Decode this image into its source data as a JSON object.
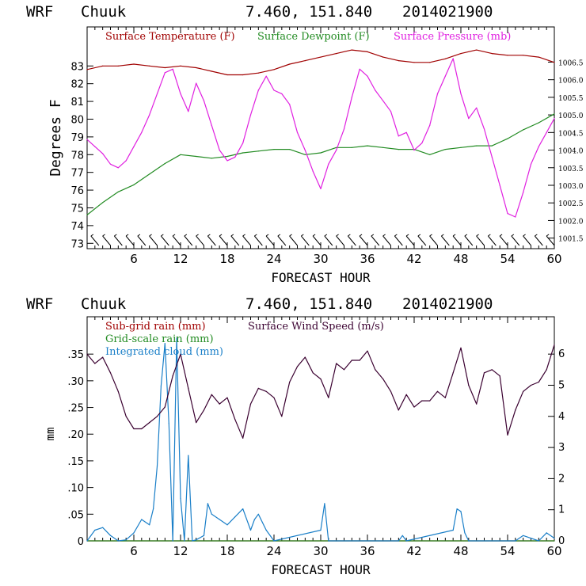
{
  "chart_data": [
    {
      "type": "line",
      "header": {
        "model": "WRF",
        "station": "Chuuk",
        "coords": "7.460, 151.840",
        "init": "2014021900"
      },
      "xlabel": "FORECAST HOUR",
      "ylabel": "Degrees F",
      "xlim": [
        0,
        60
      ],
      "ylim": [
        72.7,
        85.2
      ],
      "x_ticks": [
        6,
        12,
        18,
        24,
        30,
        36,
        42,
        48,
        54,
        60
      ],
      "y_ticks": [
        73,
        74,
        75,
        76,
        77,
        78,
        79,
        80,
        81,
        82,
        83
      ],
      "y2_label": "Surface Pressure (mb)",
      "y2lim": [
        1001.2,
        1007.5
      ],
      "y2_ticks": [
        "1001.5",
        "1002.0",
        "1002.5",
        "1003.0",
        "1003.5",
        "1004.0",
        "1004.5",
        "1005.0",
        "1005.5",
        "1006.0",
        "1006.5"
      ],
      "series": [
        {
          "name": "Surface Temperature (F)",
          "color": "#a00000",
          "axis": "left",
          "x": [
            0,
            2,
            4,
            6,
            8,
            10,
            12,
            14,
            16,
            18,
            20,
            22,
            24,
            26,
            28,
            30,
            32,
            34,
            36,
            38,
            40,
            42,
            44,
            46,
            48,
            50,
            52,
            54,
            56,
            58,
            60
          ],
          "values": [
            82.8,
            83.0,
            83.0,
            83.1,
            83.0,
            82.9,
            83.0,
            82.9,
            82.7,
            82.5,
            82.5,
            82.6,
            82.8,
            83.1,
            83.3,
            83.5,
            83.7,
            83.9,
            83.8,
            83.5,
            83.3,
            83.2,
            83.2,
            83.4,
            83.7,
            83.9,
            83.7,
            83.6,
            83.6,
            83.5,
            83.2
          ]
        },
        {
          "name": "Surface Dewpoint (F)",
          "color": "#228b22",
          "axis": "left",
          "x": [
            0,
            2,
            4,
            6,
            8,
            10,
            12,
            14,
            16,
            18,
            20,
            22,
            24,
            26,
            28,
            30,
            32,
            34,
            36,
            38,
            40,
            42,
            44,
            46,
            48,
            50,
            52,
            54,
            56,
            58,
            60
          ],
          "values": [
            74.6,
            75.3,
            75.9,
            76.3,
            76.9,
            77.5,
            78.0,
            77.9,
            77.8,
            77.9,
            78.1,
            78.2,
            78.3,
            78.3,
            78.0,
            78.1,
            78.4,
            78.4,
            78.5,
            78.4,
            78.3,
            78.3,
            78.0,
            78.3,
            78.4,
            78.5,
            78.5,
            78.9,
            79.4,
            79.8,
            80.3
          ]
        },
        {
          "name": "Surface Pressure (mb)",
          "color": "#e020e0",
          "axis": "right",
          "x": [
            0,
            1,
            2,
            3,
            4,
            5,
            6,
            7,
            8,
            9,
            10,
            11,
            12,
            13,
            14,
            15,
            16,
            17,
            18,
            19,
            20,
            21,
            22,
            23,
            24,
            25,
            26,
            27,
            28,
            29,
            30,
            31,
            32,
            33,
            34,
            35,
            36,
            37,
            38,
            39,
            40,
            41,
            42,
            43,
            44,
            45,
            46,
            47,
            48,
            49,
            50,
            51,
            52,
            53,
            54,
            55,
            56,
            57,
            58,
            59,
            60
          ],
          "values": [
            1004.3,
            1004.1,
            1003.9,
            1003.6,
            1003.5,
            1003.7,
            1004.1,
            1004.5,
            1005.0,
            1005.6,
            1006.2,
            1006.3,
            1005.6,
            1005.1,
            1005.9,
            1005.4,
            1004.7,
            1004.0,
            1003.7,
            1003.8,
            1004.2,
            1005.0,
            1005.7,
            1006.1,
            1005.7,
            1005.6,
            1005.3,
            1004.5,
            1004.0,
            1003.4,
            1002.9,
            1003.6,
            1004.0,
            1004.6,
            1005.5,
            1006.3,
            1006.1,
            1005.7,
            1005.4,
            1005.1,
            1004.4,
            1004.5,
            1004.0,
            1004.2,
            1004.7,
            1005.6,
            1006.1,
            1006.6,
            1005.6,
            1004.9,
            1005.2,
            1004.6,
            1003.8,
            1003.0,
            1002.2,
            1002.1,
            1002.8,
            1003.6,
            1004.1,
            1004.5,
            1004.9
          ]
        }
      ],
      "wind_barbs": "wind barbs along bottom of panel every hour"
    },
    {
      "type": "line",
      "header": {
        "model": "WRF",
        "station": "Chuuk",
        "coords": "7.460, 151.840",
        "init": "2014021900"
      },
      "xlabel": "FORECAST HOUR",
      "ylabel": "mm",
      "xlim": [
        0,
        60
      ],
      "ylim": [
        0,
        0.42
      ],
      "x_ticks": [
        6,
        12,
        18,
        24,
        30,
        36,
        42,
        48,
        54,
        60
      ],
      "y_ticks": [
        "0",
        ".05",
        ".10",
        ".15",
        ".20",
        ".25",
        ".30",
        ".35"
      ],
      "y2_label": "Surface Wind Speed (m/s)",
      "y2lim": [
        0,
        7.2
      ],
      "y2_ticks": [
        "0",
        "1",
        "2",
        "3",
        "4",
        "5",
        "6"
      ],
      "series": [
        {
          "name": "Sub-grid rain (mm)",
          "color": "#a00000",
          "axis": "left",
          "x": [
            0,
            60
          ],
          "values": [
            0.0,
            0.0
          ]
        },
        {
          "name": "Grid-scale rain (mm)",
          "color": "#228b22",
          "axis": "left",
          "x": [
            0,
            60
          ],
          "values": [
            0.0,
            0.0
          ]
        },
        {
          "name": "Integrated cloud (mm)",
          "color": "#1a7fc8",
          "axis": "left",
          "x": [
            0,
            1,
            2,
            3,
            4,
            5,
            6,
            7,
            8,
            8.5,
            9,
            9.5,
            10,
            10.5,
            11,
            11.5,
            12,
            12.5,
            13,
            13.5,
            14,
            15,
            15.5,
            16,
            17,
            18,
            19,
            20,
            21,
            21.5,
            22,
            23,
            24,
            30,
            30.5,
            31,
            32,
            40,
            40.5,
            41,
            47,
            47.5,
            48,
            48.5,
            49,
            55,
            56,
            58,
            59,
            60
          ],
          "values": [
            0.0,
            0.02,
            0.025,
            0.01,
            0.0,
            0.002,
            0.015,
            0.04,
            0.03,
            0.06,
            0.14,
            0.29,
            0.37,
            0.22,
            0.0,
            0.38,
            0.08,
            0.0,
            0.16,
            0.0,
            0.002,
            0.01,
            0.07,
            0.05,
            0.04,
            0.03,
            0.045,
            0.06,
            0.02,
            0.04,
            0.05,
            0.02,
            0.0,
            0.02,
            0.07,
            0.0,
            0.0,
            0.0,
            0.01,
            0.0,
            0.02,
            0.06,
            0.055,
            0.015,
            0.0,
            0.0,
            0.01,
            0.0,
            0.015,
            0.005
          ]
        },
        {
          "name": "Surface Wind Speed (m/s)",
          "color": "#3a0030",
          "axis": "right",
          "x": [
            0,
            1,
            2,
            3,
            4,
            5,
            6,
            7,
            8,
            9,
            10,
            11,
            12,
            13,
            14,
            15,
            16,
            17,
            18,
            19,
            20,
            21,
            22,
            23,
            24,
            25,
            26,
            27,
            28,
            29,
            30,
            31,
            32,
            33,
            34,
            35,
            36,
            37,
            38,
            39,
            40,
            41,
            42,
            43,
            44,
            45,
            46,
            47,
            48,
            49,
            50,
            51,
            52,
            53,
            54,
            55,
            56,
            57,
            58,
            59,
            60
          ],
          "values": [
            6.0,
            5.7,
            5.9,
            5.4,
            4.8,
            4.0,
            3.6,
            3.6,
            3.8,
            4.0,
            4.3,
            5.3,
            6.0,
            4.9,
            3.8,
            4.2,
            4.7,
            4.4,
            4.6,
            3.9,
            3.3,
            4.4,
            4.9,
            4.8,
            4.6,
            4.0,
            5.1,
            5.6,
            5.9,
            5.4,
            5.2,
            4.6,
            5.7,
            5.5,
            5.8,
            5.8,
            6.1,
            5.5,
            5.2,
            4.8,
            4.2,
            4.7,
            4.3,
            4.5,
            4.5,
            4.8,
            4.6,
            5.4,
            6.2,
            5.0,
            4.4,
            5.4,
            5.5,
            5.3,
            3.4,
            4.2,
            4.8,
            5.0,
            5.1,
            5.5,
            6.3
          ]
        }
      ]
    }
  ]
}
